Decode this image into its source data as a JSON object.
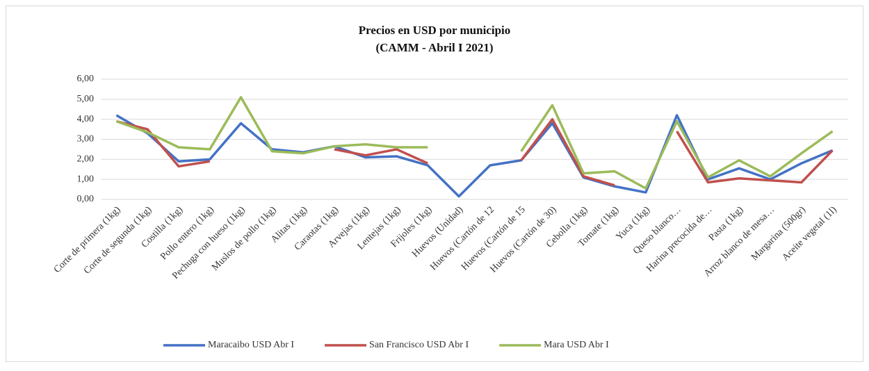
{
  "chart_data": {
    "type": "line",
    "title": "Precios en USD por municipio",
    "subtitle": "(CAMM - Abril I 2021)",
    "categories": [
      "Corte de primera (1kg)",
      "Corte de segunda (1kg)",
      "Costilla (1kg)",
      "Pollo entero (1kg)",
      "Pechuga con hueso (1kg)",
      "Muslos de pollo (1kg)",
      "Alitas (1kg)",
      "Caraotas (1kg)",
      "Arvejas (1kg)",
      "Lentejas (1kg)",
      "Frijoles (1kg)",
      "Huevos (Unidad)",
      "Huevos (Cartón de 12",
      "Huevos (Cartón de 15",
      "Huevos (Cartón de 30)",
      "Cebolla (1kg)",
      "Tomate (1kg)",
      "Yuca (1kg)",
      "Queso blanco…",
      "Harina precocida de…",
      "Pasta (1kg)",
      "Arroz blanco de mesa…",
      "Margarina (500gr)",
      "Aceite vegetal (1l)"
    ],
    "series": [
      {
        "name": "Maracaibo USD Abr I",
        "color": "#4472c4",
        "values": [
          4.2,
          3.3,
          1.9,
          2.0,
          3.8,
          2.5,
          2.35,
          2.65,
          2.1,
          2.15,
          1.7,
          0.15,
          1.7,
          1.95,
          3.8,
          1.1,
          0.65,
          0.35,
          4.2,
          1.0,
          1.55,
          1.0,
          1.8,
          2.45
        ]
      },
      {
        "name": "San Francisco USD Abr I",
        "color": "#c0504d",
        "values": [
          3.9,
          3.5,
          1.65,
          1.9,
          null,
          null,
          null,
          2.5,
          2.2,
          2.5,
          1.8,
          null,
          null,
          1.95,
          4.0,
          1.15,
          0.7,
          null,
          3.4,
          0.85,
          1.05,
          0.95,
          0.85,
          2.45
        ]
      },
      {
        "name": "Mara USD Abr I",
        "color": "#9bbb59",
        "values": [
          3.9,
          3.35,
          2.6,
          2.5,
          5.1,
          2.4,
          2.3,
          2.65,
          2.75,
          2.6,
          2.6,
          null,
          null,
          2.4,
          4.7,
          1.3,
          1.4,
          0.55,
          3.9,
          1.1,
          1.95,
          1.15,
          2.3,
          3.4
        ]
      }
    ],
    "ylim": [
      0,
      6
    ],
    "yticks": [
      {
        "value": 0,
        "label": "0,00"
      },
      {
        "value": 1,
        "label": "1,00"
      },
      {
        "value": 2,
        "label": "2,00"
      },
      {
        "value": 3,
        "label": "3,00"
      },
      {
        "value": 4,
        "label": "4,00"
      },
      {
        "value": 5,
        "label": "5,00"
      },
      {
        "value": 6,
        "label": "6,00"
      }
    ],
    "grid": true,
    "legend": "bottom"
  }
}
